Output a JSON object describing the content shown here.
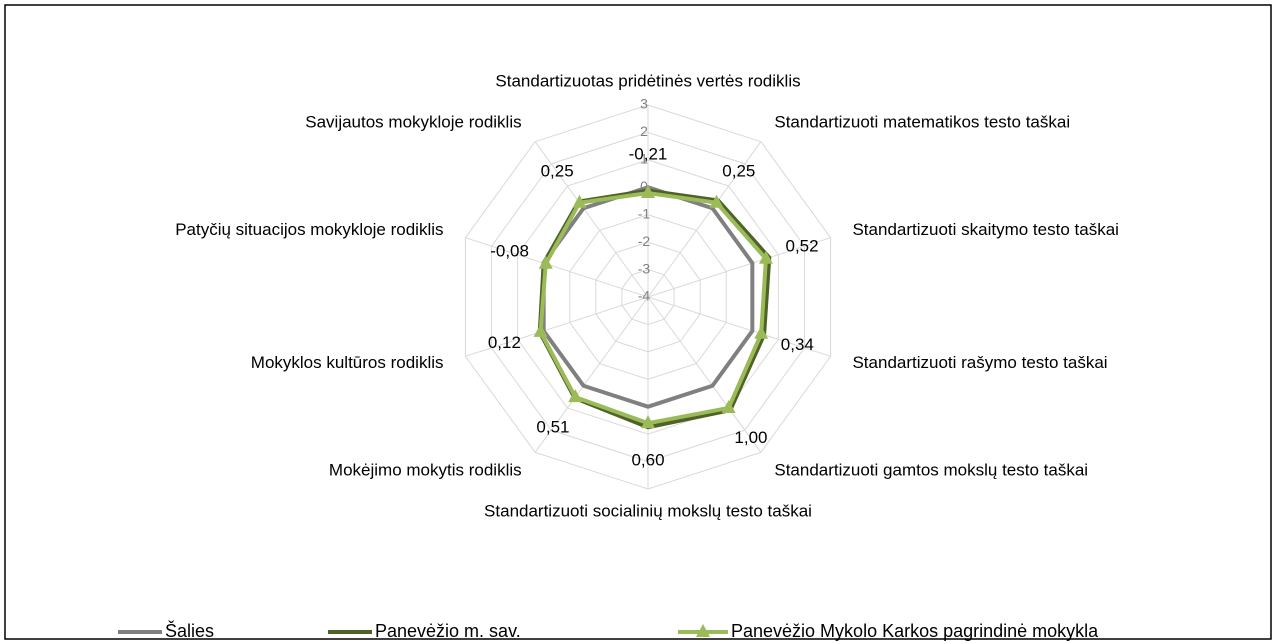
{
  "chart_data": {
    "type": "radar",
    "categories": [
      "Standartizuotas pridėtinės vertės rodiklis",
      "Standartizuoti matematikos testo taškai",
      "Standartizuoti skaitymo testo taškai",
      "Standartizuoti rašymo testo taškai",
      "Standartizuoti gamtos mokslų testo taškai",
      "Standartizuoti socialinių mokslų testo taškai",
      "Mokėjimo mokytis rodiklis",
      "Mokyklos kultūros rodiklis",
      "Patyčių situacijos mokykloje rodiklis",
      "Savijautos mokykloje rodiklis"
    ],
    "series": [
      {
        "name": "Šalies",
        "color": "#808080",
        "values": [
          0,
          0,
          0,
          0,
          0,
          0,
          0,
          0,
          0,
          0
        ]
      },
      {
        "name": "Panevėžio m. sav.",
        "color": "#4f6228",
        "values": [
          -0.12,
          0.35,
          0.65,
          0.45,
          1.1,
          0.75,
          0.55,
          0.15,
          0.0,
          0.3
        ]
      },
      {
        "name": "Panevėžio Mykolo Karkos pagrindinė mokykla",
        "color": "#9bbb59",
        "marker": "triangle",
        "values": [
          -0.21,
          0.25,
          0.52,
          0.34,
          1.0,
          0.6,
          0.51,
          0.12,
          -0.08,
          0.25
        ],
        "value_labels": [
          "-0,21",
          "0,25",
          "0,52",
          "0,34",
          "1,00",
          "0,60",
          "0,51",
          "0,12",
          "-0,08",
          "0,25"
        ]
      }
    ],
    "rlim": [
      -4,
      3
    ],
    "rticks": [
      -4,
      -3,
      -2,
      -1,
      0,
      1,
      2,
      3
    ],
    "grid": true,
    "legend": "bottom"
  }
}
